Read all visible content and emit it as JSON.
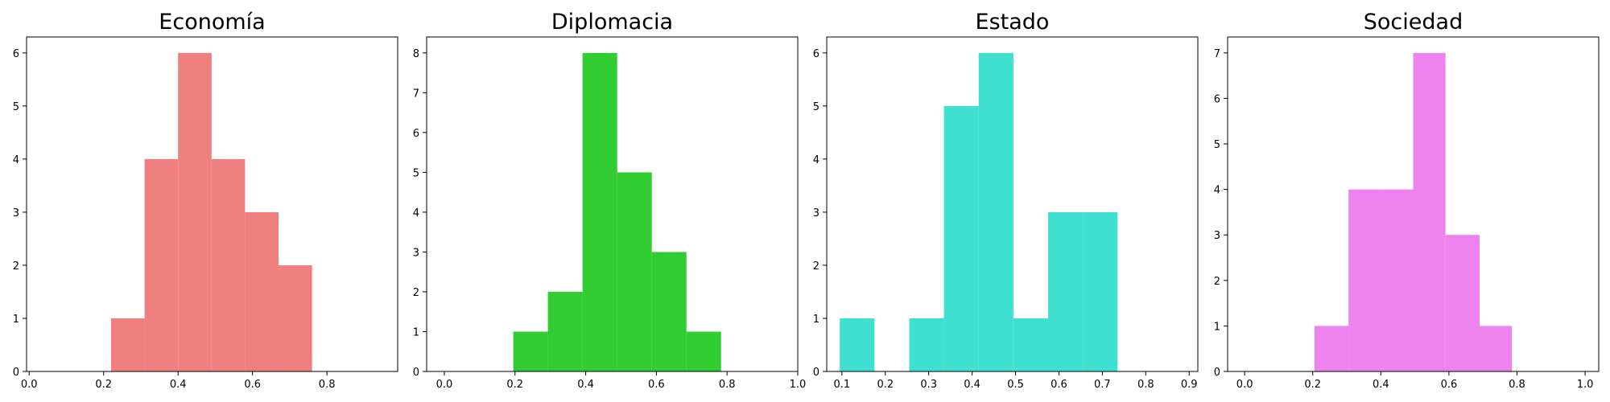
{
  "chart_data": [
    {
      "type": "bar",
      "subtype": "histogram",
      "title": "Economía",
      "color": "#f08080",
      "xlabel": "",
      "ylabel": "",
      "xlim": [
        -0.007,
        0.99
      ],
      "ylim": [
        0,
        6.3
      ],
      "xticks": [
        0.0,
        0.2,
        0.4,
        0.6,
        0.8
      ],
      "xtick_labels": [
        "0.0",
        "0.2",
        "0.4",
        "0.6",
        "0.8"
      ],
      "yticks": [
        0,
        1,
        2,
        3,
        4,
        5,
        6
      ],
      "ytick_labels": [
        "0",
        "1",
        "2",
        "3",
        "4",
        "5",
        "6"
      ],
      "bins": [
        {
          "x0": 0.22,
          "x1": 0.31,
          "count": 1
        },
        {
          "x0": 0.31,
          "x1": 0.4,
          "count": 4
        },
        {
          "x0": 0.4,
          "x1": 0.49,
          "count": 6
        },
        {
          "x0": 0.49,
          "x1": 0.58,
          "count": 4
        },
        {
          "x0": 0.58,
          "x1": 0.67,
          "count": 3
        },
        {
          "x0": 0.67,
          "x1": 0.76,
          "count": 2
        }
      ]
    },
    {
      "type": "bar",
      "subtype": "histogram",
      "title": "Diplomacia",
      "color": "#32cd32",
      "xlabel": "",
      "ylabel": "",
      "xlim": [
        -0.05,
        1.0
      ],
      "ylim": [
        0,
        8.4
      ],
      "xticks": [
        0.0,
        0.2,
        0.4,
        0.6,
        0.8,
        1.0
      ],
      "xtick_labels": [
        "0.0",
        "0.2",
        "0.4",
        "0.6",
        "0.8",
        "1.0"
      ],
      "yticks": [
        0,
        1,
        2,
        3,
        4,
        5,
        6,
        7,
        8
      ],
      "ytick_labels": [
        "0",
        "1",
        "2",
        "3",
        "4",
        "5",
        "6",
        "7",
        "8"
      ],
      "bins": [
        {
          "x0": 0.195,
          "x1": 0.293,
          "count": 1
        },
        {
          "x0": 0.293,
          "x1": 0.391,
          "count": 2
        },
        {
          "x0": 0.391,
          "x1": 0.489,
          "count": 8
        },
        {
          "x0": 0.489,
          "x1": 0.587,
          "count": 5
        },
        {
          "x0": 0.587,
          "x1": 0.685,
          "count": 3
        },
        {
          "x0": 0.685,
          "x1": 0.783,
          "count": 1
        }
      ]
    },
    {
      "type": "bar",
      "subtype": "histogram",
      "title": "Estado",
      "color": "#40e0d0",
      "xlabel": "",
      "ylabel": "",
      "xlim": [
        0.065,
        0.92
      ],
      "ylim": [
        0,
        6.3
      ],
      "xticks": [
        0.1,
        0.2,
        0.3,
        0.4,
        0.5,
        0.6,
        0.7,
        0.8,
        0.9
      ],
      "xtick_labels": [
        "0.1",
        "0.2",
        "0.3",
        "0.4",
        "0.5",
        "0.6",
        "0.7",
        "0.8",
        "0.9"
      ],
      "yticks": [
        0,
        1,
        2,
        3,
        4,
        5,
        6
      ],
      "ytick_labels": [
        "0",
        "1",
        "2",
        "3",
        "4",
        "5",
        "6"
      ],
      "bins": [
        {
          "x0": 0.095,
          "x1": 0.175,
          "count": 1
        },
        {
          "x0": 0.175,
          "x1": 0.255,
          "count": 0
        },
        {
          "x0": 0.255,
          "x1": 0.335,
          "count": 1
        },
        {
          "x0": 0.335,
          "x1": 0.415,
          "count": 5
        },
        {
          "x0": 0.415,
          "x1": 0.495,
          "count": 6
        },
        {
          "x0": 0.495,
          "x1": 0.575,
          "count": 1
        },
        {
          "x0": 0.575,
          "x1": 0.655,
          "count": 3
        },
        {
          "x0": 0.655,
          "x1": 0.735,
          "count": 3
        }
      ]
    },
    {
      "type": "bar",
      "subtype": "histogram",
      "title": "Sociedad",
      "color": "#ee82ee",
      "xlabel": "",
      "ylabel": "",
      "xlim": [
        -0.05,
        1.04
      ],
      "ylim": [
        0,
        7.35
      ],
      "xticks": [
        0.0,
        0.2,
        0.4,
        0.6,
        0.8,
        1.0
      ],
      "xtick_labels": [
        "0.0",
        "0.2",
        "0.4",
        "0.6",
        "0.8",
        "1.0"
      ],
      "yticks": [
        0,
        1,
        2,
        3,
        4,
        5,
        6,
        7
      ],
      "ytick_labels": [
        "0",
        "1",
        "2",
        "3",
        "4",
        "5",
        "6",
        "7"
      ],
      "bins": [
        {
          "x0": 0.205,
          "x1": 0.305,
          "count": 1
        },
        {
          "x0": 0.305,
          "x1": 0.405,
          "count": 4
        },
        {
          "x0": 0.405,
          "x1": 0.495,
          "count": 4
        },
        {
          "x0": 0.495,
          "x1": 0.59,
          "count": 7
        },
        {
          "x0": 0.59,
          "x1": 0.69,
          "count": 3
        },
        {
          "x0": 0.69,
          "x1": 0.785,
          "count": 1
        }
      ]
    }
  ]
}
